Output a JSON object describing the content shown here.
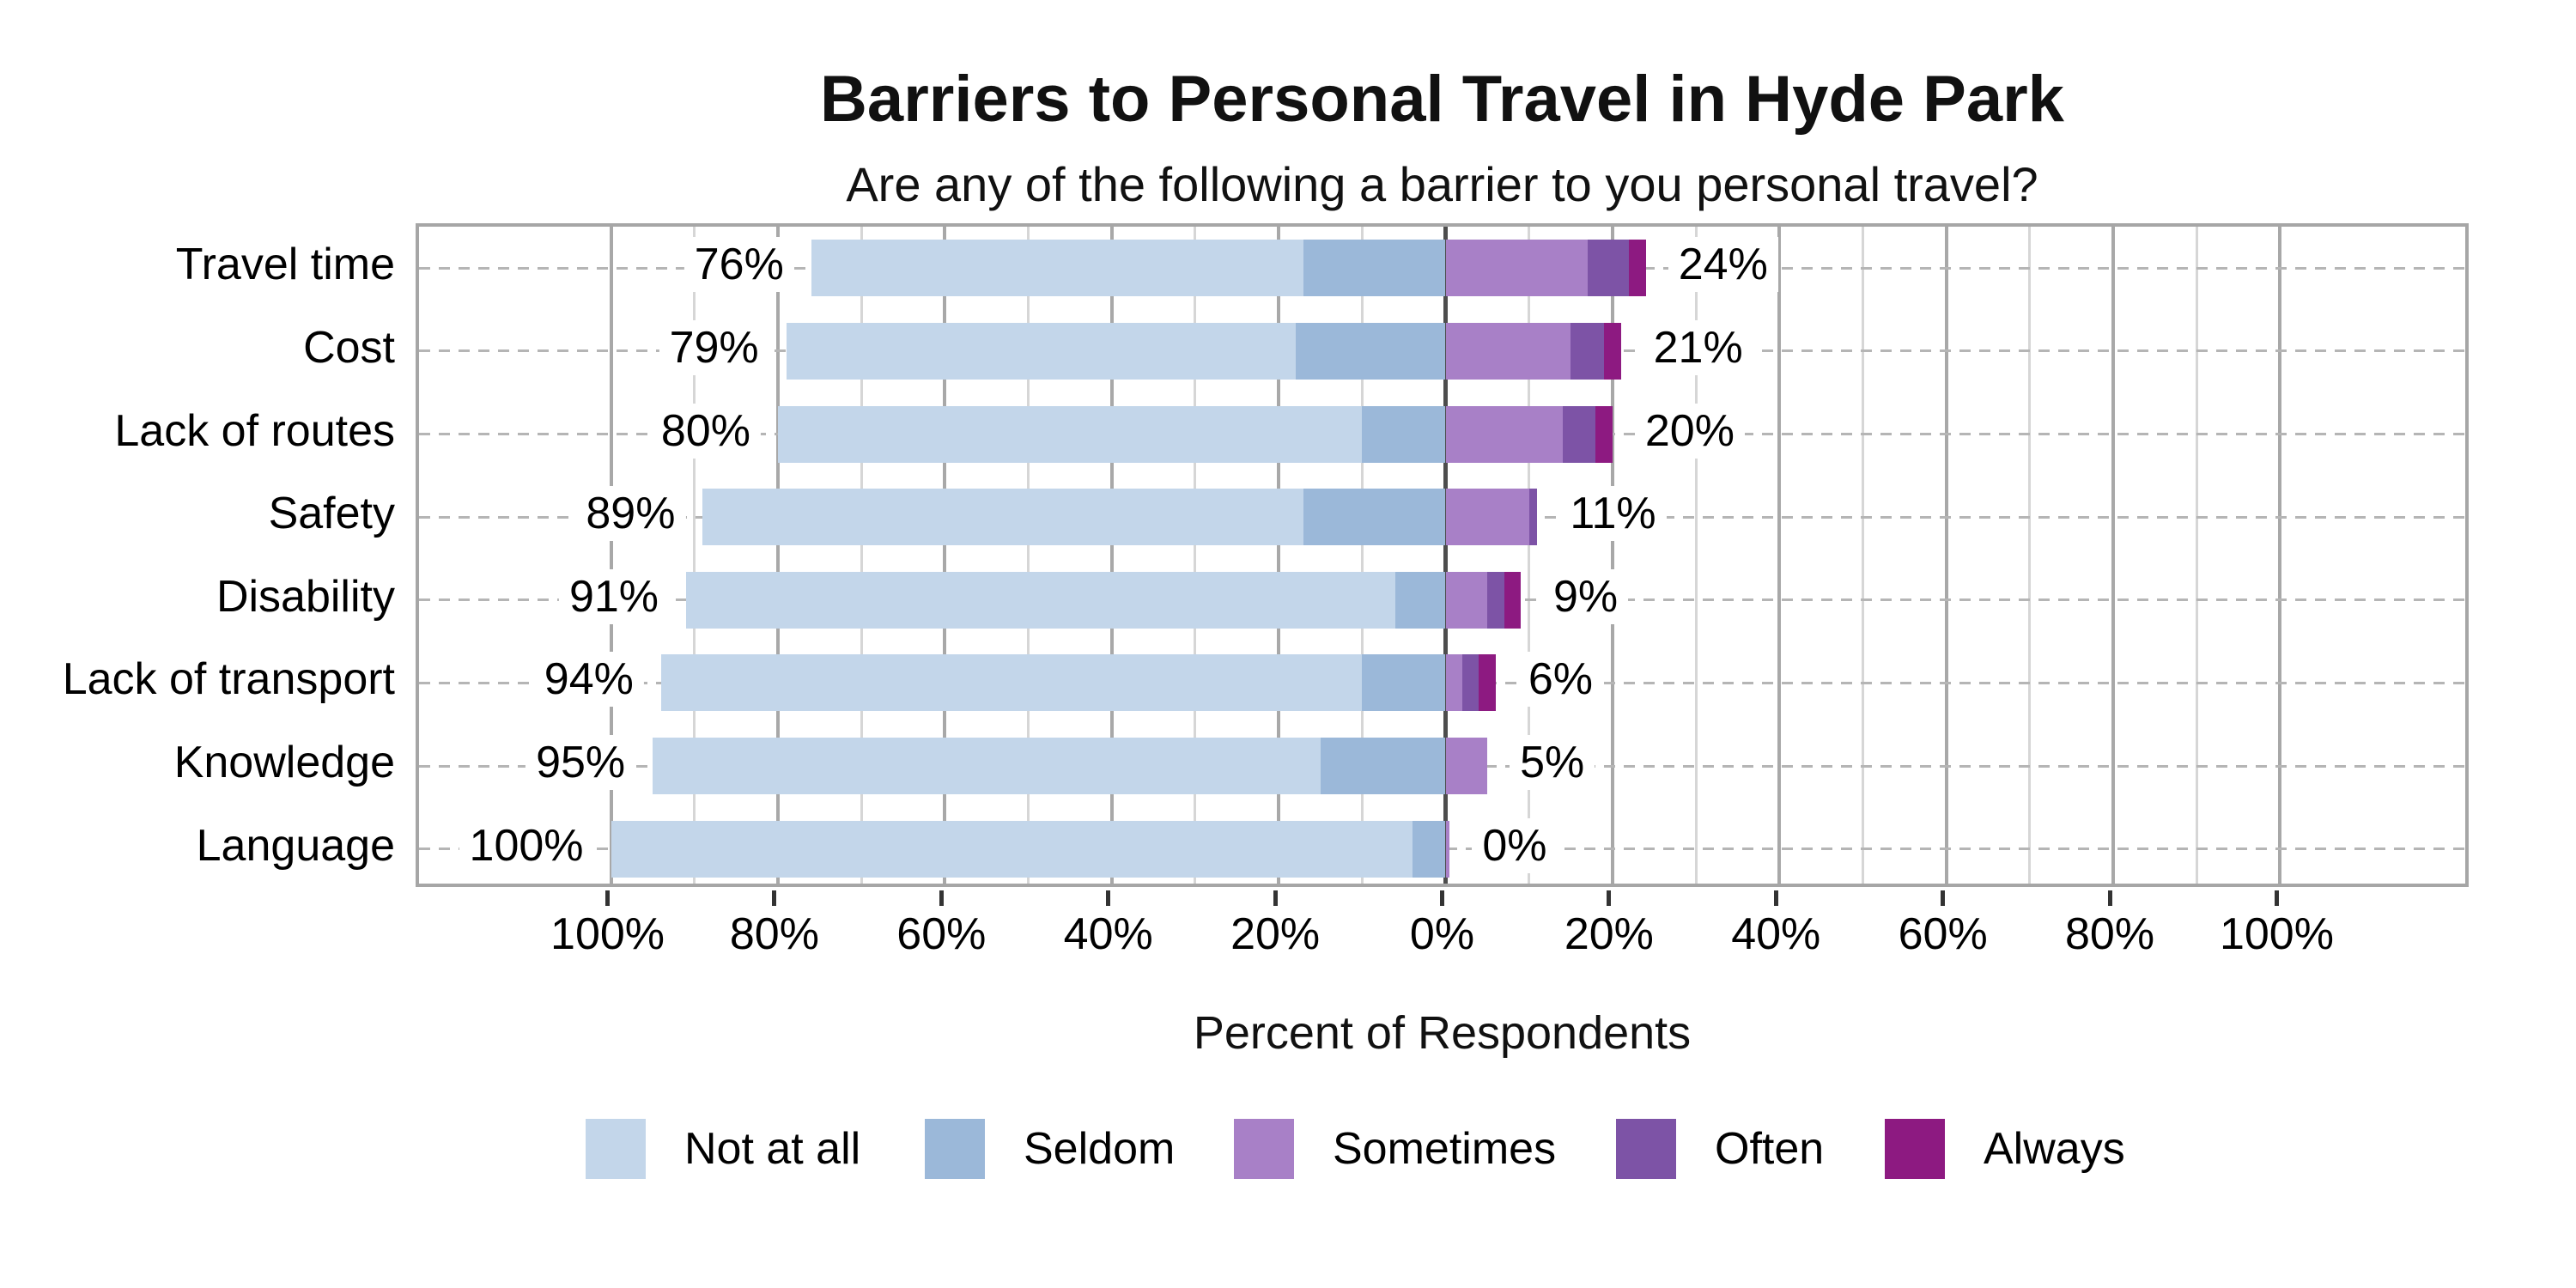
{
  "chart_data": {
    "type": "bar",
    "variant": "diverging-stacked-likert",
    "title": "Barriers to Personal Travel in Hyde Park",
    "subtitle": "Are any of the following a barrier to you personal travel?",
    "xlabel": "Percent of Respondents",
    "categories": [
      "Travel time",
      "Cost",
      "Lack of routes",
      "Safety",
      "Disability",
      "Lack of transport",
      "Knowledge",
      "Language"
    ],
    "series": [
      {
        "name": "Not at all",
        "side": "left",
        "color": "#c3d6ea",
        "values": [
          59,
          61,
          70,
          72,
          85,
          84,
          80,
          96
        ]
      },
      {
        "name": "Seldom",
        "side": "left",
        "color": "#9bb8d9",
        "values": [
          17,
          18,
          10,
          17,
          6,
          10,
          15,
          4
        ]
      },
      {
        "name": "Sometimes",
        "side": "right",
        "color": "#a880c7",
        "values": [
          17,
          15,
          14,
          10,
          5,
          2,
          5,
          0.5
        ]
      },
      {
        "name": "Often",
        "side": "right",
        "color": "#7d53a6",
        "values": [
          5,
          4,
          4,
          1,
          2,
          2,
          0,
          0
        ]
      },
      {
        "name": "Always",
        "side": "right",
        "color": "#8d1a81",
        "values": [
          2,
          2,
          2,
          0,
          2,
          2,
          0,
          0
        ]
      }
    ],
    "row_total_labels": {
      "left": [
        "76%",
        "79%",
        "80%",
        "89%",
        "91%",
        "94%",
        "95%",
        "100%"
      ],
      "right": [
        "24%",
        "21%",
        "20%",
        "11%",
        "9%",
        "6%",
        "5%",
        "0%"
      ]
    },
    "x_ticks": {
      "values": [
        -100,
        -80,
        -60,
        -40,
        -20,
        0,
        20,
        40,
        60,
        80,
        100
      ],
      "labels": [
        "100%",
        "80%",
        "60%",
        "40%",
        "20%",
        "0%",
        "20%",
        "40%",
        "60%",
        "80%",
        "100%"
      ]
    },
    "axis_range": [
      -123,
      123
    ],
    "grid": {
      "vertical_minor_step": 10,
      "vertical_major_step": 20,
      "row_guides": "dashed",
      "minor_color": "#d6d6d6",
      "major_color": "#a8a8a8",
      "zero_line_color": "#4d4d4d",
      "border_color": "#a6a6a6",
      "row_guide_color": "#b5b5b5",
      "tick_color": "#333333"
    },
    "legend_position": "bottom",
    "legend": [
      "Not at all",
      "Seldom",
      "Sometimes",
      "Often",
      "Always"
    ]
  }
}
